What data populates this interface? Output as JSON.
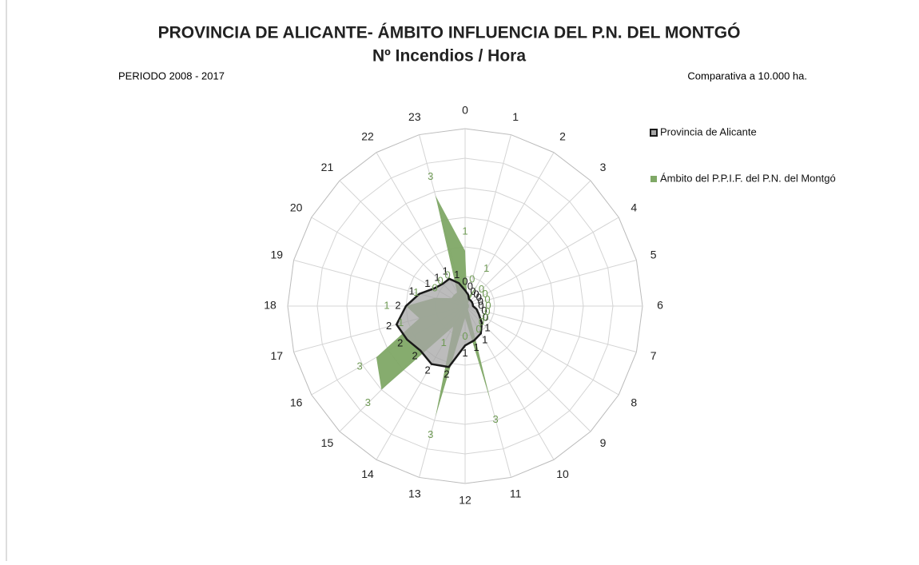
{
  "chart_data": {
    "type": "radar",
    "title": "PROVINCIA DE ALICANTE- ÁMBITO INFLUENCIA DEL P.N. DEL MONTGÓ",
    "subtitle": "Nº Incendios / Hora",
    "annotations": [
      "PERIODO 2008 - 2017",
      "Comparativa a 10.000 ha."
    ],
    "categories": [
      "0",
      "1",
      "2",
      "3",
      "4",
      "5",
      "6",
      "7",
      "8",
      "9",
      "10",
      "11",
      "12",
      "13",
      "14",
      "15",
      "16",
      "17",
      "18",
      "19",
      "20",
      "21",
      "22",
      "23"
    ],
    "ylim": [
      0,
      4.5
    ],
    "legend": "right",
    "series": [
      {
        "name": "Provincia de Alicante",
        "color": "#1a1a1a",
        "fill": "#a6a6a6",
        "values": [
          0.4,
          0.3,
          0.2,
          0.2,
          0.2,
          0.2,
          0.2,
          0.3,
          0.4,
          0.6,
          0.8,
          0.9,
          1.0,
          1.6,
          1.7,
          1.6,
          1.7,
          1.8,
          1.5,
          1.2,
          0.9,
          0.8,
          0.8,
          0.6
        ],
        "value_labels": [
          "0",
          "0",
          "0",
          "0",
          "0",
          "0",
          "0",
          "0",
          "0",
          "1",
          "1",
          "1",
          "1",
          "2",
          "2",
          "2",
          "2",
          "2",
          "2",
          "1",
          "1",
          "1",
          "1",
          "1"
        ]
      },
      {
        "name": "Ámbito del P.P.I.F. del P.N. del Montgó",
        "color": "#6f9a55",
        "fill": "#7fa866",
        "values": [
          1.4,
          0.2,
          0.6,
          0.1,
          0.1,
          0.1,
          0.1,
          0.1,
          0.1,
          0.1,
          0.2,
          2.5,
          0.3,
          2.9,
          0.6,
          3.0,
          2.6,
          1.2,
          1.5,
          0.8,
          0.4,
          0.4,
          0.4,
          2.9
        ],
        "value_labels": [
          "1",
          "0",
          "1",
          "0",
          "0",
          "0",
          "0",
          "0",
          "0",
          "0",
          "0",
          "3",
          "0",
          "3",
          "1",
          "3",
          "3",
          "1",
          "1",
          "1",
          "0",
          "0",
          "0",
          "3"
        ]
      }
    ]
  }
}
